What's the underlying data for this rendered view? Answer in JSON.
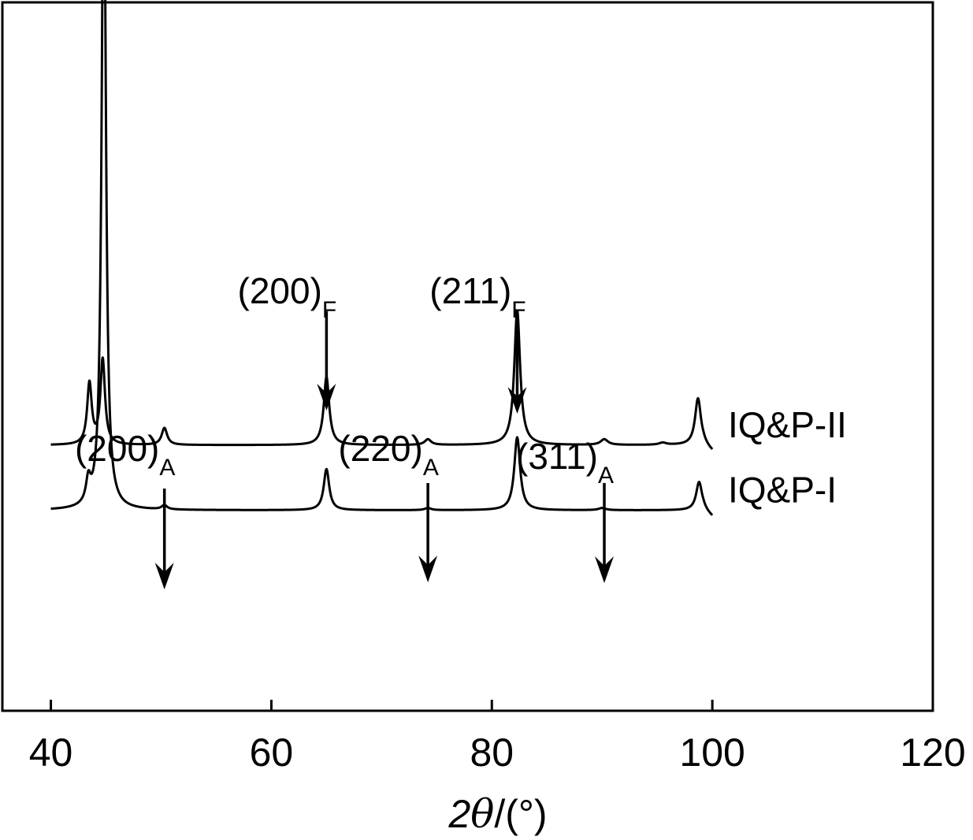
{
  "chart_data": {
    "type": "line",
    "xlabel_main": "2",
    "xlabel_theta": "θ",
    "xlabel_unit": "/(°)",
    "xlim": [
      40,
      120
    ],
    "ylim": [
      0,
      100
    ],
    "x_ticks": [
      40,
      60,
      80,
      100,
      120
    ],
    "y_axis_shown": false,
    "grid": false,
    "series": [
      {
        "name": "IQ&P-II",
        "baseline": 37.5,
        "peaks": [
          {
            "x": 43.5,
            "h": 8.6,
            "w": 0.25
          },
          {
            "x": 44.7,
            "h": 12.0,
            "w": 0.25
          },
          {
            "x": 50.3,
            "h": 2.4,
            "w": 0.3
          },
          {
            "x": 65.0,
            "h": 9.6,
            "w": 0.3
          },
          {
            "x": 74.2,
            "h": 0.8,
            "w": 0.35
          },
          {
            "x": 82.3,
            "h": 19.0,
            "w": 0.32
          },
          {
            "x": 90.2,
            "h": 0.8,
            "w": 0.4
          },
          {
            "x": 95.5,
            "h": 0.3,
            "w": 0.4
          },
          {
            "x": 98.7,
            "h": 6.6,
            "w": 0.32
          }
        ]
      },
      {
        "name": "IQ&P-I",
        "baseline": 28.3,
        "peaks": [
          {
            "x": 43.4,
            "h": 3.2,
            "w": 0.25
          },
          {
            "x": 44.8,
            "h": 100.0,
            "w": 0.22
          },
          {
            "x": 50.3,
            "h": 0.6,
            "w": 0.3
          },
          {
            "x": 65.0,
            "h": 5.8,
            "w": 0.3
          },
          {
            "x": 74.2,
            "h": 0.3,
            "w": 0.35
          },
          {
            "x": 82.3,
            "h": 10.3,
            "w": 0.32
          },
          {
            "x": 90.0,
            "h": 0.3,
            "w": 0.4
          },
          {
            "x": 98.8,
            "h": 4.0,
            "w": 0.32
          }
        ]
      }
    ],
    "annotations": [
      {
        "main": "(200)",
        "sub": "A",
        "x": 50.3
      },
      {
        "main": "(200)",
        "sub": "F",
        "x": 65.0
      },
      {
        "main": "(220)",
        "sub": "A",
        "x": 74.2
      },
      {
        "main": "(211)",
        "sub": "F",
        "x": 82.3
      },
      {
        "main": "(311)",
        "sub": "A",
        "x": 90.2
      }
    ]
  }
}
